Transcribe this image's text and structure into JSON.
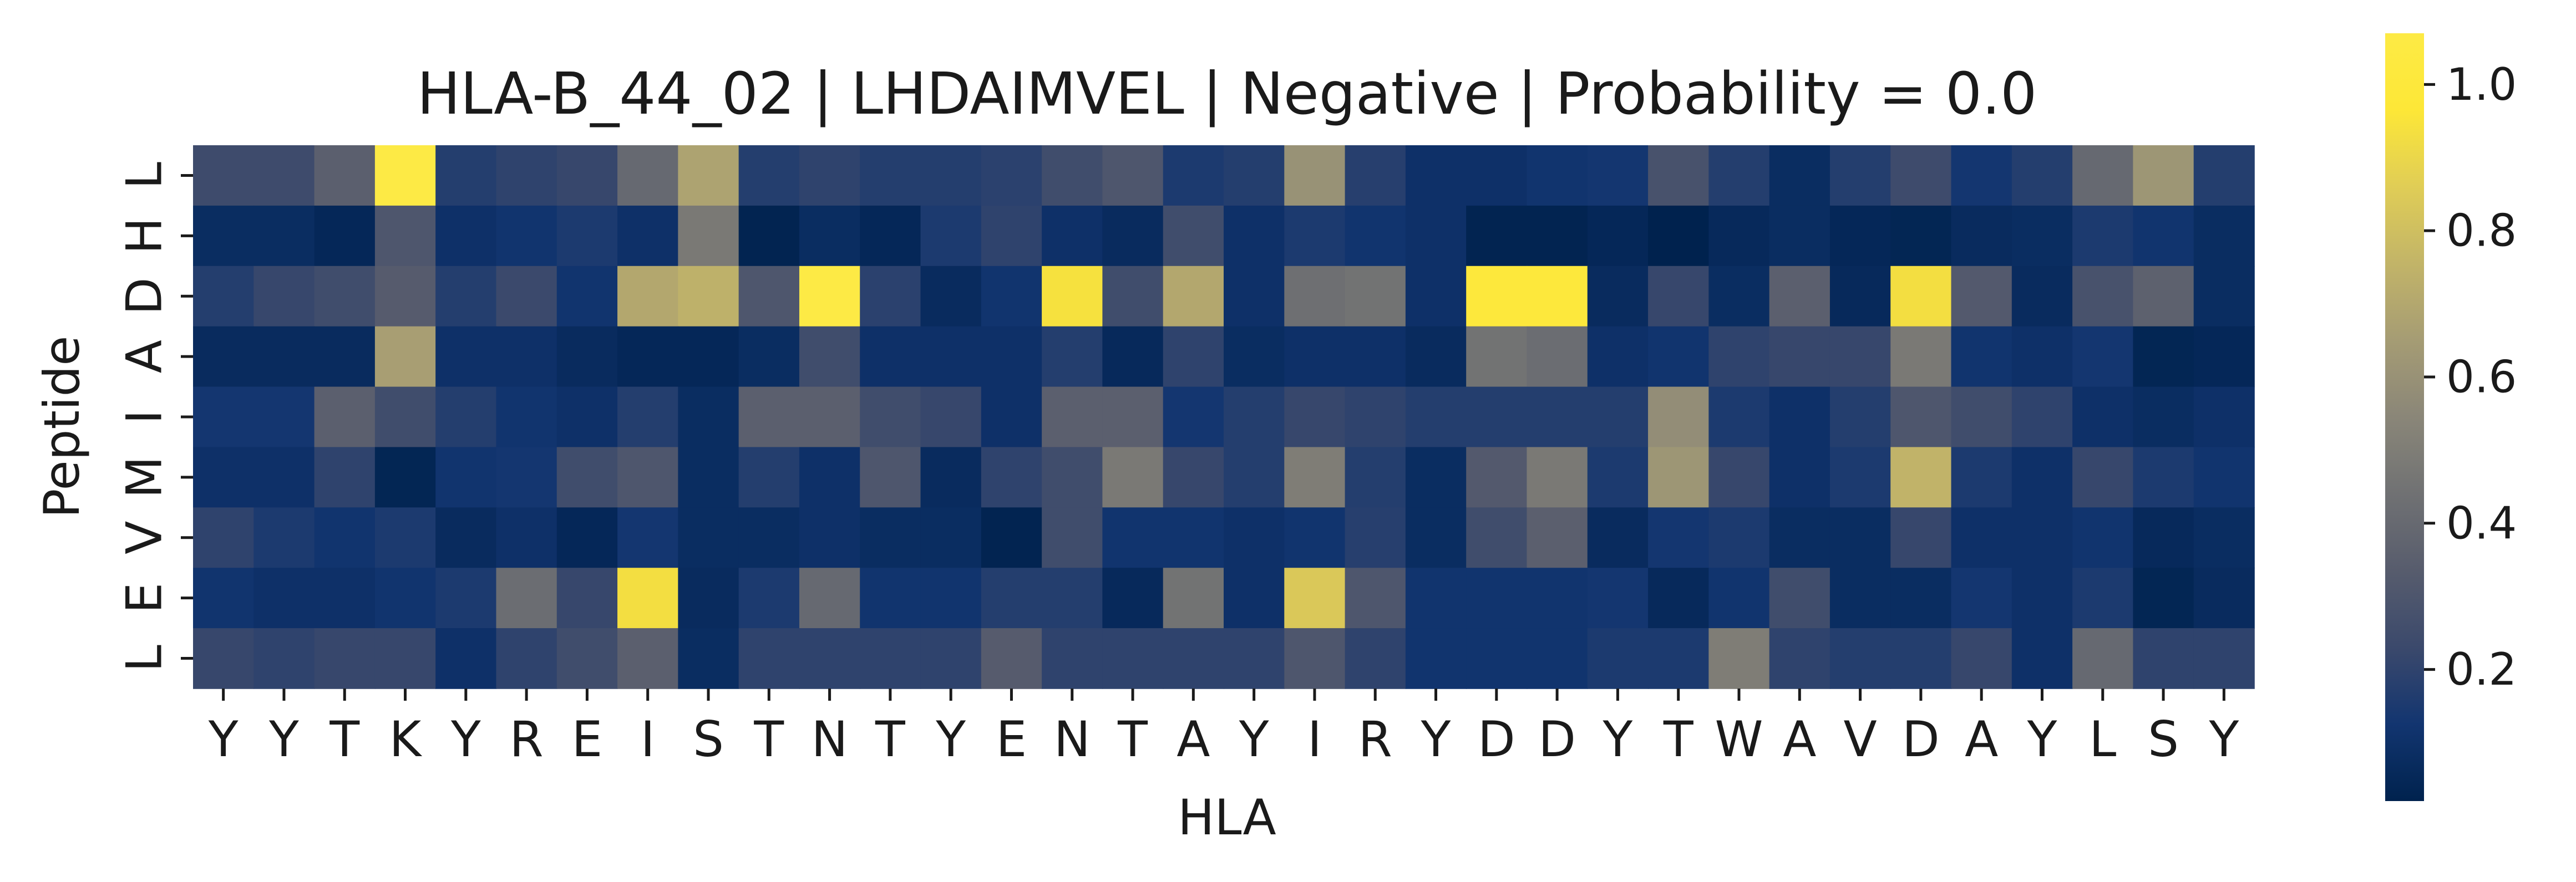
{
  "chart_data": {
    "type": "heatmap",
    "title": "HLA-B_44_02 | LHDAIMVEL | Negative | Probability = 0.0",
    "xlabel": "HLA",
    "ylabel": "Peptide",
    "x_tick_labels": [
      "Y",
      "Y",
      "T",
      "K",
      "Y",
      "R",
      "E",
      "I",
      "S",
      "T",
      "N",
      "T",
      "Y",
      "E",
      "N",
      "T",
      "A",
      "Y",
      "I",
      "R",
      "Y",
      "D",
      "D",
      "Y",
      "T",
      "W",
      "A",
      "V",
      "D",
      "A",
      "Y",
      "L",
      "S",
      "Y"
    ],
    "y_tick_labels": [
      "L",
      "H",
      "D",
      "A",
      "I",
      "M",
      "V",
      "E",
      "L"
    ],
    "colormap": "cividis",
    "vmin": 0.02,
    "vmax": 1.07,
    "colorbar_ticks": [
      0.2,
      0.4,
      0.6,
      0.8,
      1.0
    ],
    "colorbar_tick_labels": [
      "0.2",
      "0.4",
      "0.6",
      "0.8",
      "1.0"
    ],
    "values": [
      [
        0.24,
        0.24,
        0.35,
        1.07,
        0.17,
        0.2,
        0.22,
        0.4,
        0.68,
        0.17,
        0.2,
        0.17,
        0.17,
        0.19,
        0.25,
        0.3,
        0.15,
        0.17,
        0.6,
        0.18,
        0.1,
        0.1,
        0.12,
        0.13,
        0.28,
        0.17,
        0.08,
        0.17,
        0.24,
        0.13,
        0.17,
        0.4,
        0.62,
        0.17
      ],
      [
        0.08,
        0.08,
        0.05,
        0.3,
        0.1,
        0.12,
        0.15,
        0.1,
        0.48,
        0.03,
        0.08,
        0.05,
        0.15,
        0.2,
        0.1,
        0.07,
        0.25,
        0.1,
        0.15,
        0.12,
        0.1,
        0.03,
        0.03,
        0.05,
        0.02,
        0.06,
        0.08,
        0.05,
        0.04,
        0.07,
        0.08,
        0.15,
        0.12,
        0.08
      ],
      [
        0.17,
        0.22,
        0.25,
        0.33,
        0.17,
        0.23,
        0.12,
        0.7,
        0.74,
        0.3,
        1.07,
        0.19,
        0.07,
        0.12,
        0.94,
        0.25,
        0.7,
        0.1,
        0.43,
        0.45,
        0.1,
        1.0,
        1.0,
        0.07,
        0.22,
        0.08,
        0.35,
        0.06,
        0.93,
        0.32,
        0.07,
        0.28,
        0.36,
        0.08
      ],
      [
        0.07,
        0.07,
        0.07,
        0.66,
        0.1,
        0.1,
        0.07,
        0.05,
        0.05,
        0.08,
        0.25,
        0.1,
        0.1,
        0.1,
        0.17,
        0.06,
        0.2,
        0.08,
        0.1,
        0.1,
        0.07,
        0.45,
        0.42,
        0.1,
        0.12,
        0.2,
        0.22,
        0.22,
        0.48,
        0.12,
        0.1,
        0.13,
        0.04,
        0.05
      ],
      [
        0.13,
        0.13,
        0.35,
        0.25,
        0.17,
        0.12,
        0.1,
        0.17,
        0.08,
        0.35,
        0.35,
        0.25,
        0.22,
        0.1,
        0.35,
        0.35,
        0.13,
        0.17,
        0.22,
        0.2,
        0.17,
        0.17,
        0.17,
        0.17,
        0.58,
        0.15,
        0.1,
        0.17,
        0.3,
        0.25,
        0.2,
        0.1,
        0.08,
        0.1
      ],
      [
        0.1,
        0.1,
        0.2,
        0.04,
        0.12,
        0.13,
        0.25,
        0.3,
        0.08,
        0.17,
        0.1,
        0.3,
        0.07,
        0.2,
        0.25,
        0.48,
        0.22,
        0.17,
        0.5,
        0.17,
        0.08,
        0.32,
        0.48,
        0.15,
        0.62,
        0.22,
        0.1,
        0.15,
        0.75,
        0.15,
        0.1,
        0.22,
        0.15,
        0.12
      ],
      [
        0.2,
        0.15,
        0.12,
        0.15,
        0.07,
        0.1,
        0.05,
        0.13,
        0.08,
        0.08,
        0.1,
        0.08,
        0.08,
        0.03,
        0.25,
        0.12,
        0.12,
        0.1,
        0.12,
        0.18,
        0.08,
        0.25,
        0.35,
        0.07,
        0.13,
        0.15,
        0.08,
        0.08,
        0.22,
        0.1,
        0.1,
        0.12,
        0.06,
        0.08
      ],
      [
        0.12,
        0.1,
        0.1,
        0.12,
        0.15,
        0.42,
        0.22,
        0.93,
        0.07,
        0.15,
        0.4,
        0.12,
        0.12,
        0.17,
        0.17,
        0.06,
        0.45,
        0.1,
        0.84,
        0.3,
        0.12,
        0.12,
        0.12,
        0.13,
        0.06,
        0.12,
        0.25,
        0.08,
        0.08,
        0.13,
        0.1,
        0.15,
        0.04,
        0.07
      ],
      [
        0.22,
        0.2,
        0.22,
        0.22,
        0.1,
        0.2,
        0.25,
        0.35,
        0.08,
        0.2,
        0.2,
        0.2,
        0.2,
        0.33,
        0.2,
        0.2,
        0.2,
        0.2,
        0.3,
        0.2,
        0.12,
        0.12,
        0.12,
        0.15,
        0.15,
        0.5,
        0.2,
        0.17,
        0.17,
        0.22,
        0.1,
        0.4,
        0.2,
        0.2
      ]
    ]
  }
}
